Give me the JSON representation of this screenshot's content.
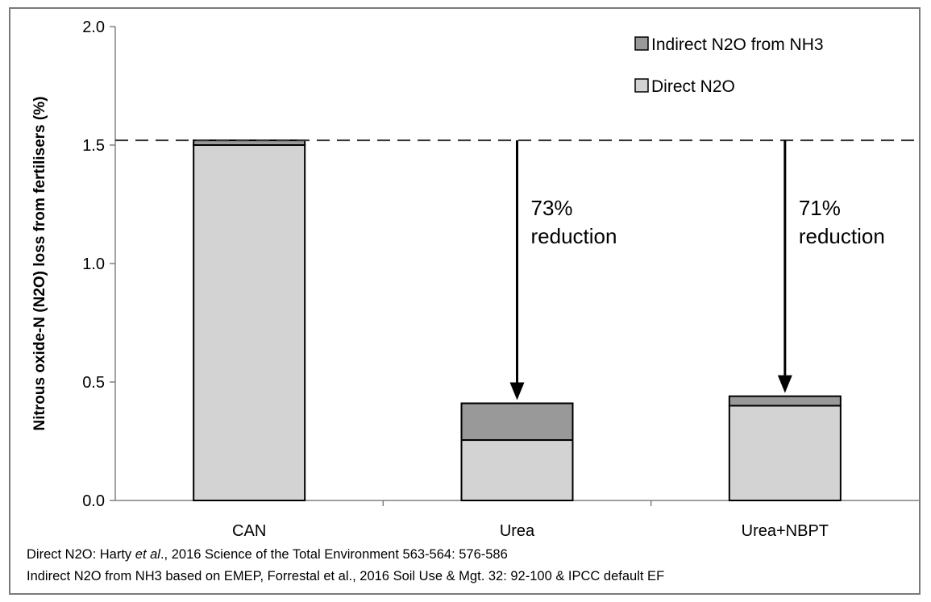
{
  "chart_data": {
    "type": "bar",
    "stacked": true,
    "categories": [
      "CAN",
      "Urea",
      "Urea+NBPT"
    ],
    "series": [
      {
        "name": "Direct N2O",
        "values": [
          1.5,
          0.255,
          0.4
        ],
        "color": "#d3d3d3"
      },
      {
        "name": "Indirect N2O from NH3",
        "values": [
          0.02,
          0.155,
          0.04
        ],
        "color": "#999999"
      }
    ],
    "ylabel": "Nitrous oxide-N (N2O) loss from fertilisers (%)",
    "ylim": [
      0,
      2.0
    ],
    "yticks": [
      "0.0",
      "0.5",
      "1.0",
      "1.5",
      "2.0"
    ],
    "reference_line": 1.52,
    "grid": false,
    "legend_position": "top-right",
    "annotations": [
      {
        "category": "Urea",
        "line1": "73%",
        "line2": "reduction"
      },
      {
        "category": "Urea+NBPT",
        "line1": "71%",
        "line2": "reduction"
      }
    ]
  },
  "footnotes": {
    "line1_pre": "Direct N2O: Harty ",
    "line1_italic": "et al",
    "line1_post": "., 2016 Science of the Total Environment 563-564: 576-586",
    "line2": "Indirect N2O from NH3 based on EMEP, Forrestal et al., 2016 Soil Use & Mgt. 32: 92-100 & IPCC  default EF"
  }
}
